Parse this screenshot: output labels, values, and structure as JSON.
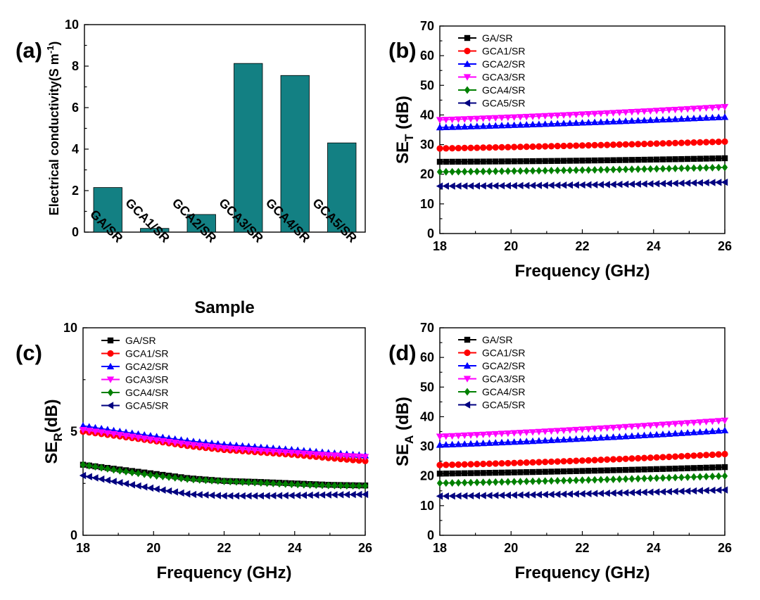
{
  "chart_data": [
    {
      "panel": "(a)",
      "type": "bar",
      "categories": [
        "GA/SR",
        "GCA1/SR",
        "GCA2/SR",
        "GCA3/SR",
        "GCA4/SR",
        "GCA5/SR"
      ],
      "values": [
        2.15,
        0.18,
        0.85,
        8.13,
        7.55,
        4.3
      ],
      "bar_color": "#138083",
      "xlabel": "Sample",
      "ylabel_main": "Electrical conductivity(S m",
      "ylabel_sup": "-1",
      "ylabel_close": ")",
      "ylim": [
        0,
        10
      ],
      "yticks": [
        0,
        2,
        4,
        6,
        8,
        10
      ]
    },
    {
      "panel": "(b)",
      "type": "line",
      "xlabel": "Frequency (GHz)",
      "ylabel_main": "SE",
      "ylabel_sub": "T",
      "ylabel_tail": " (dB)",
      "xlim": [
        18,
        26
      ],
      "ylim": [
        0,
        70
      ],
      "xticks": [
        18,
        20,
        22,
        24,
        26
      ],
      "yticks": [
        0,
        10,
        20,
        30,
        40,
        50,
        60,
        70
      ],
      "series": [
        {
          "name": "GA/SR",
          "marker": "square",
          "color": "#000000",
          "start": 24.2,
          "end": 25.4,
          "mid": 24.6
        },
        {
          "name": "GCA1/SR",
          "marker": "circle",
          "color": "#ff0000",
          "start": 28.7,
          "end": 31.0,
          "mid": 29.7
        },
        {
          "name": "GCA2/SR",
          "marker": "triangle-up",
          "color": "#0000ff",
          "start": 35.8,
          "end": 39.3,
          "mid": 37.4
        },
        {
          "name": "GCA3/SR",
          "marker": "triangle-down",
          "color": "#ff00ff",
          "start": 38.3,
          "end": 42.7,
          "mid": 40.2
        },
        {
          "name": "GCA4/SR",
          "marker": "diamond",
          "color": "#008000",
          "start": 20.8,
          "end": 22.3,
          "mid": 21.4
        },
        {
          "name": "GCA5/SR",
          "marker": "triangle-left",
          "color": "#000080",
          "start": 16.0,
          "end": 17.3,
          "mid": 16.4
        }
      ]
    },
    {
      "panel": "(c)",
      "type": "line",
      "xlabel": "Frequency (GHz)",
      "ylabel_main": "SE",
      "ylabel_sub": "R",
      "ylabel_tail": "(dB)",
      "xlim": [
        18,
        26
      ],
      "ylim": [
        0,
        10
      ],
      "xticks": [
        18,
        20,
        22,
        24,
        26
      ],
      "yticks": [
        0,
        5,
        10
      ],
      "series": [
        {
          "name": "GA/SR",
          "marker": "square",
          "color": "#000000",
          "x": [
            18,
            19,
            20,
            21,
            22,
            23,
            24,
            25,
            26
          ],
          "y": [
            3.4,
            3.18,
            2.97,
            2.75,
            2.62,
            2.57,
            2.5,
            2.43,
            2.4
          ]
        },
        {
          "name": "GCA1/SR",
          "marker": "circle",
          "color": "#ff0000",
          "x": [
            18,
            19,
            20,
            21,
            22,
            23,
            24,
            25,
            26
          ],
          "y": [
            5.0,
            4.78,
            4.55,
            4.3,
            4.12,
            4.0,
            3.88,
            3.72,
            3.58
          ]
        },
        {
          "name": "GCA2/SR",
          "marker": "triangle-up",
          "color": "#0000ff",
          "x": [
            18,
            19,
            20,
            21,
            22,
            23,
            24,
            25,
            26
          ],
          "y": [
            5.28,
            5.02,
            4.78,
            4.55,
            4.38,
            4.25,
            4.12,
            3.98,
            3.85
          ]
        },
        {
          "name": "GCA3/SR",
          "marker": "triangle-down",
          "color": "#ff00ff",
          "x": [
            18,
            19,
            20,
            21,
            22,
            23,
            24,
            25,
            26
          ],
          "y": [
            5.08,
            4.85,
            4.6,
            4.38,
            4.2,
            4.08,
            3.97,
            3.86,
            3.78
          ]
        },
        {
          "name": "GCA4/SR",
          "marker": "diamond",
          "color": "#008000",
          "x": [
            18,
            19,
            20,
            21,
            22,
            23,
            24,
            25,
            26
          ],
          "y": [
            3.4,
            3.12,
            2.88,
            2.7,
            2.6,
            2.53,
            2.45,
            2.4,
            2.38
          ]
        },
        {
          "name": "GCA5/SR",
          "marker": "triangle-left",
          "color": "#000080",
          "x": [
            18,
            19,
            20,
            21,
            22,
            23,
            24,
            25,
            26
          ],
          "y": [
            2.88,
            2.55,
            2.25,
            1.98,
            1.9,
            1.9,
            1.92,
            1.95,
            1.97
          ]
        }
      ]
    },
    {
      "panel": "(d)",
      "type": "line",
      "xlabel": "Frequency (GHz)",
      "ylabel_main": "SE",
      "ylabel_sub": "A",
      "ylabel_tail": " (dB)",
      "xlim": [
        18,
        26
      ],
      "ylim": [
        0,
        70
      ],
      "xticks": [
        18,
        20,
        22,
        24,
        26
      ],
      "yticks": [
        0,
        10,
        20,
        30,
        40,
        50,
        60,
        70
      ],
      "series": [
        {
          "name": "GA/SR",
          "marker": "square",
          "color": "#000000",
          "start": 20.8,
          "end": 23.0,
          "mid": 21.7
        },
        {
          "name": "GCA1/SR",
          "marker": "circle",
          "color": "#ff0000",
          "start": 23.7,
          "end": 27.4,
          "mid": 25.2
        },
        {
          "name": "GCA2/SR",
          "marker": "triangle-up",
          "color": "#0000ff",
          "start": 30.5,
          "end": 35.4,
          "mid": 32.6
        },
        {
          "name": "GCA3/SR",
          "marker": "triangle-down",
          "color": "#ff00ff",
          "start": 33.3,
          "end": 38.7,
          "mid": 35.7
        },
        {
          "name": "GCA4/SR",
          "marker": "diamond",
          "color": "#008000",
          "start": 17.6,
          "end": 20.0,
          "mid": 18.6
        },
        {
          "name": "GCA5/SR",
          "marker": "triangle-left",
          "color": "#000080",
          "start": 13.2,
          "end": 15.3,
          "mid": 14.0
        }
      ]
    }
  ]
}
